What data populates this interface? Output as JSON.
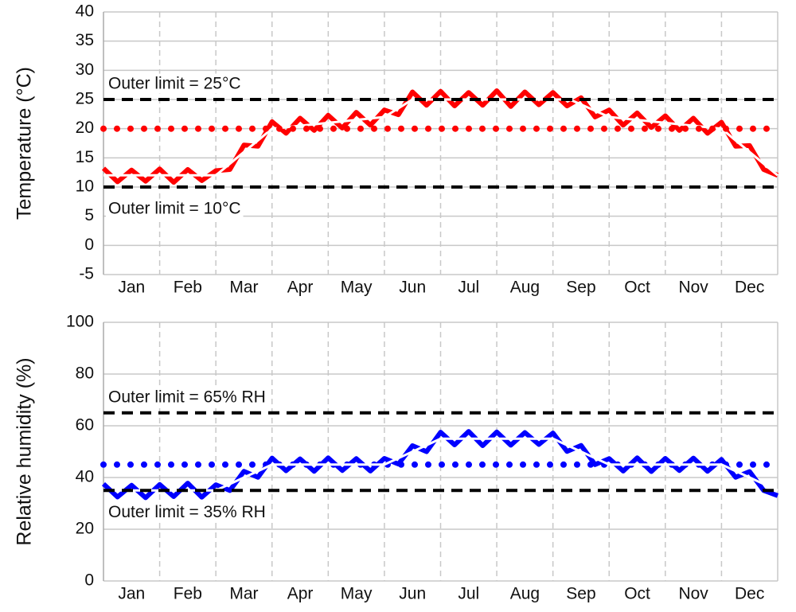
{
  "chart_data": [
    {
      "type": "line",
      "ylabel": "Temperature (°C)",
      "categories": [
        "Jan",
        "Feb",
        "Mar",
        "Apr",
        "May",
        "Jun",
        "Jul",
        "Aug",
        "Sep",
        "Oct",
        "Nov",
        "Dec"
      ],
      "xlim": [
        0,
        12
      ],
      "ylim": [
        -5,
        40
      ],
      "yticks": [
        -5,
        0,
        5,
        10,
        15,
        20,
        25,
        30,
        35,
        40
      ],
      "grid": true,
      "series": [
        {
          "role": "measured",
          "color": "#ff0000",
          "width": 6,
          "x": [
            0,
            0.25,
            0.5,
            0.75,
            1,
            1.25,
            1.5,
            1.75,
            2,
            2.25,
            2.5,
            2.75,
            3,
            3.25,
            3.5,
            3.75,
            4,
            4.25,
            4.5,
            4.75,
            5,
            5.25,
            5.5,
            5.75,
            6,
            6.25,
            6.5,
            6.75,
            7,
            7.25,
            7.5,
            7.75,
            8,
            8.25,
            8.5,
            8.75,
            9,
            9.25,
            9.5,
            9.75,
            10,
            10.25,
            10.5,
            10.75,
            11,
            11.25,
            11.5,
            11.75,
            12
          ],
          "values": [
            13.2,
            10.9,
            12.9,
            11.0,
            13.1,
            10.8,
            13.0,
            11.1,
            12.8,
            13.0,
            17.2,
            17.0,
            21.2,
            19.2,
            21.8,
            19.7,
            22.3,
            20.1,
            22.8,
            20.6,
            23.2,
            22.4,
            26.3,
            24.0,
            26.4,
            23.9,
            26.2,
            24.0,
            26.5,
            23.8,
            26.3,
            24.1,
            26.2,
            23.9,
            25.3,
            22.0,
            23.2,
            20.6,
            22.7,
            20.2,
            22.2,
            19.7,
            21.8,
            19.2,
            21.1,
            17.0,
            17.1,
            13.0,
            12.0
          ]
        },
        {
          "role": "setpoint",
          "color": "#ffffff",
          "width": 3,
          "x": [
            0,
            2,
            3,
            5,
            5.5,
            8.3,
            9,
            11,
            12
          ],
          "values": [
            12,
            12,
            20,
            22,
            25,
            25,
            22,
            20,
            12
          ]
        },
        {
          "role": "target",
          "color": "#ff0000",
          "dash": "dotted",
          "x": [
            0,
            12
          ],
          "values": [
            20,
            20
          ]
        },
        {
          "role": "limit",
          "color": "#000000",
          "dash": "dashed",
          "x": [
            0,
            12
          ],
          "values": [
            25,
            25
          ],
          "label": "Outer limit = 25°C",
          "label_side": "above"
        },
        {
          "role": "limit",
          "color": "#000000",
          "dash": "dashed",
          "x": [
            0,
            12
          ],
          "values": [
            10,
            10
          ],
          "label": "Outer limit = 10°C",
          "label_side": "below"
        }
      ]
    },
    {
      "type": "line",
      "ylabel": "Relative humidity (%)",
      "categories": [
        "Jan",
        "Feb",
        "Mar",
        "Apr",
        "May",
        "Jun",
        "Jul",
        "Aug",
        "Sep",
        "Oct",
        "Nov",
        "Dec"
      ],
      "xlim": [
        0,
        12
      ],
      "ylim": [
        0,
        100
      ],
      "yticks": [
        0,
        20,
        40,
        60,
        80,
        100
      ],
      "grid": true,
      "series": [
        {
          "role": "measured",
          "color": "#0000ff",
          "width": 6,
          "x": [
            0,
            0.25,
            0.5,
            0.75,
            1,
            1.25,
            1.5,
            1.75,
            2,
            2.25,
            2.5,
            2.75,
            3,
            3.25,
            3.5,
            3.75,
            4,
            4.25,
            4.5,
            4.75,
            5,
            5.25,
            5.5,
            5.75,
            6,
            6.25,
            6.5,
            6.75,
            7,
            7.25,
            7.5,
            7.75,
            8,
            8.25,
            8.5,
            8.75,
            9,
            9.25,
            9.5,
            9.75,
            10,
            10.25,
            10.5,
            10.75,
            11,
            11.25,
            11.5,
            11.75,
            12
          ],
          "values": [
            37.5,
            32.5,
            37.0,
            32.2,
            37.3,
            32.6,
            37.8,
            32.4,
            37.2,
            35.0,
            42.4,
            40.1,
            47.5,
            42.6,
            47.2,
            42.4,
            47.6,
            42.7,
            47.3,
            42.5,
            47.4,
            45.2,
            52.3,
            50.0,
            57.5,
            52.6,
            57.8,
            52.3,
            57.6,
            52.5,
            57.4,
            52.8,
            57.2,
            50.1,
            52.4,
            45.0,
            47.3,
            42.5,
            47.6,
            42.3,
            47.4,
            42.7,
            47.5,
            42.4,
            47.0,
            40.1,
            42.3,
            35.0,
            33.0
          ]
        },
        {
          "role": "target",
          "color": "#0000ff",
          "dash": "dotted",
          "x": [
            0,
            12
          ],
          "values": [
            45,
            45
          ]
        },
        {
          "role": "setpoint",
          "color": "#ffffff",
          "width": 3,
          "x": [
            0,
            2,
            3,
            5,
            6,
            8,
            9,
            11,
            12
          ],
          "values": [
            35,
            35,
            45,
            45,
            55,
            55,
            45,
            45,
            35
          ]
        },
        {
          "role": "limit",
          "color": "#000000",
          "dash": "dashed",
          "x": [
            0,
            12
          ],
          "values": [
            65,
            65
          ],
          "label": "Outer limit = 65% RH",
          "label_side": "above"
        },
        {
          "role": "limit",
          "color": "#000000",
          "dash": "dashed",
          "x": [
            0,
            12
          ],
          "values": [
            35,
            35
          ],
          "label": "Outer limit = 35% RH",
          "label_side": "below"
        }
      ]
    }
  ]
}
